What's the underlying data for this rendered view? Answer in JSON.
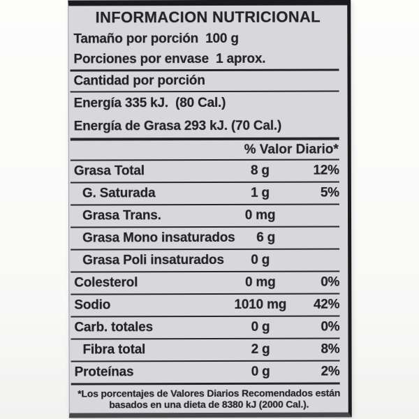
{
  "label": {
    "title": "INFORMACION NUTRICIONAL",
    "serving_size": "Tamaño por porción  100 g",
    "servings_per_container": "Porciones por envase  1 aprox.",
    "amount_header": "Cantidad por porción",
    "energy": "Energía 335 kJ.  (80 Cal.)",
    "energy_from_fat": "Energía de Grasa 293 kJ. (70 Cal.)",
    "dv_header": "% Valor Diario*",
    "nutrients": [
      {
        "name": "Grasa Total",
        "amount": "8 g",
        "dv": "12%",
        "indent": false
      },
      {
        "name": "G. Saturada",
        "amount": "1 g",
        "dv": "5%",
        "indent": true
      },
      {
        "name": "Grasa Trans.",
        "amount": "0 mg",
        "dv": "",
        "indent": true
      },
      {
        "name": "Grasa Mono insaturados",
        "amount": "6 g",
        "dv": "",
        "indent": true
      },
      {
        "name": "Grasa Poli insaturados",
        "amount": "0 g",
        "dv": "",
        "indent": true
      },
      {
        "name": "Colesterol",
        "amount": "0 mg",
        "dv": "0%",
        "indent": false
      },
      {
        "name": "Sodio",
        "amount": "1010 mg",
        "dv": "42%",
        "indent": false
      },
      {
        "name": "Carb. totales",
        "amount": "0 g",
        "dv": "0%",
        "indent": false
      },
      {
        "name": "Fibra total",
        "amount": "2 g",
        "dv": "8%",
        "indent": true
      },
      {
        "name": "Proteínas",
        "amount": "0 g",
        "dv": "2%",
        "indent": false
      }
    ],
    "footnote_line1": "*Los porcentajes de Valores Diarios Recomendados están",
    "footnote_line2": "basados en una dieta de 8380 kJ (2000 Cal.).",
    "colors": {
      "label_bg": "#d8d7dc",
      "text": "#232327",
      "rule": "#26262a",
      "border": "#1b1b1e"
    }
  }
}
